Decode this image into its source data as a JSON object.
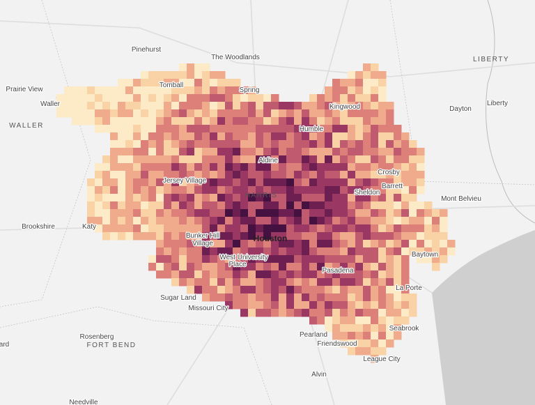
{
  "places": [
    {
      "label": "Pinehurst"
    },
    {
      "label": "The Woodlands"
    },
    {
      "label": "Tomball"
    },
    {
      "label": "Spring"
    },
    {
      "label": "Prairie View"
    },
    {
      "label": "Waller"
    },
    {
      "label": "WALLER"
    },
    {
      "label": "Kingwood"
    },
    {
      "label": "Humble"
    },
    {
      "label": "LIBERTY"
    },
    {
      "label": "Dayton"
    },
    {
      "label": "Liberty"
    },
    {
      "label": "Crosby"
    },
    {
      "label": "Barrett"
    },
    {
      "label": "Sheldon"
    },
    {
      "label": "Aldine"
    },
    {
      "label": "Jersey Village"
    },
    {
      "label": "HARRIS"
    },
    {
      "label": "Mont Belvieu"
    },
    {
      "label": "Brookshire"
    },
    {
      "label": "Katy"
    },
    {
      "label": "Bunker Hill"
    },
    {
      "label": "Village"
    },
    {
      "label": "Houston"
    },
    {
      "label": "West University"
    },
    {
      "label": "Place"
    },
    {
      "label": "Pasadena"
    },
    {
      "label": "Baytown"
    },
    {
      "label": "La Porte"
    },
    {
      "label": "Sugar Land"
    },
    {
      "label": "Missouri City"
    },
    {
      "label": "Seabrook"
    },
    {
      "label": "Rosenberg"
    },
    {
      "label": "FORT BEND"
    },
    {
      "label": "Pearland"
    },
    {
      "label": "Friendswood"
    },
    {
      "label": "League City"
    },
    {
      "label": "Alvin"
    },
    {
      "label": "ard"
    },
    {
      "label": "Needville"
    }
  ]
}
